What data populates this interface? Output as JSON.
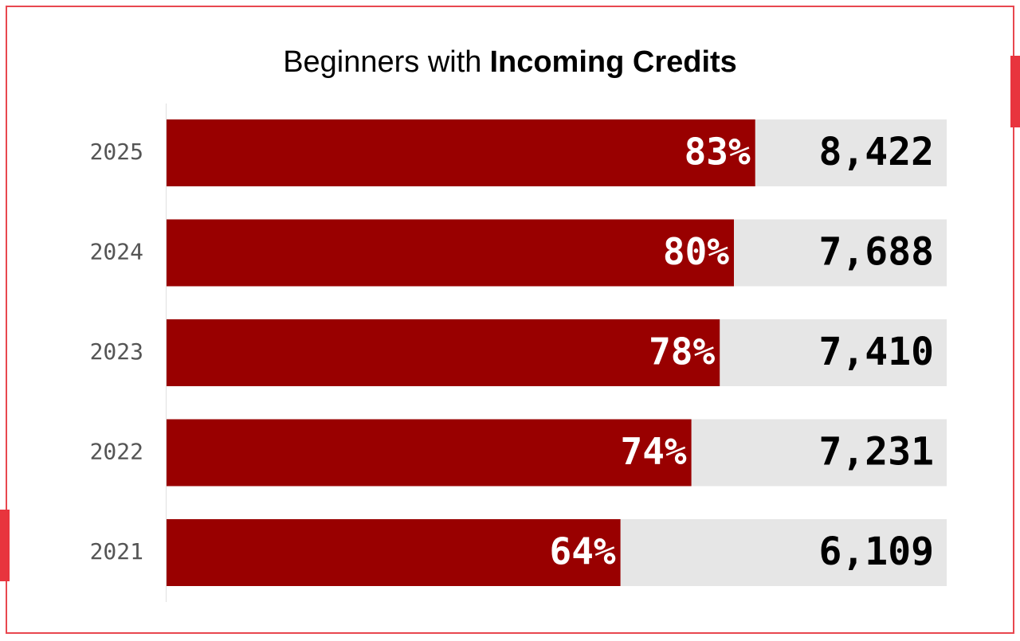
{
  "chart_data": {
    "type": "bar",
    "orientation": "horizontal",
    "title": "Beginners with",
    "title_bold": "Incoming Credits",
    "categories": [
      "2025",
      "2024",
      "2023",
      "2022",
      "2021"
    ],
    "values": [
      83,
      80,
      78,
      74,
      64
    ],
    "value_labels": [
      "83%",
      "80%",
      "78%",
      "74%",
      "64%"
    ],
    "totals": [
      8422,
      7688,
      7410,
      7231,
      6109
    ],
    "total_labels": [
      "8,422",
      "7,688",
      "7,410",
      "7,231",
      "6,109"
    ],
    "color": "#990000",
    "track_color": "#e6e6e6",
    "xlim": [
      0,
      110
    ]
  }
}
